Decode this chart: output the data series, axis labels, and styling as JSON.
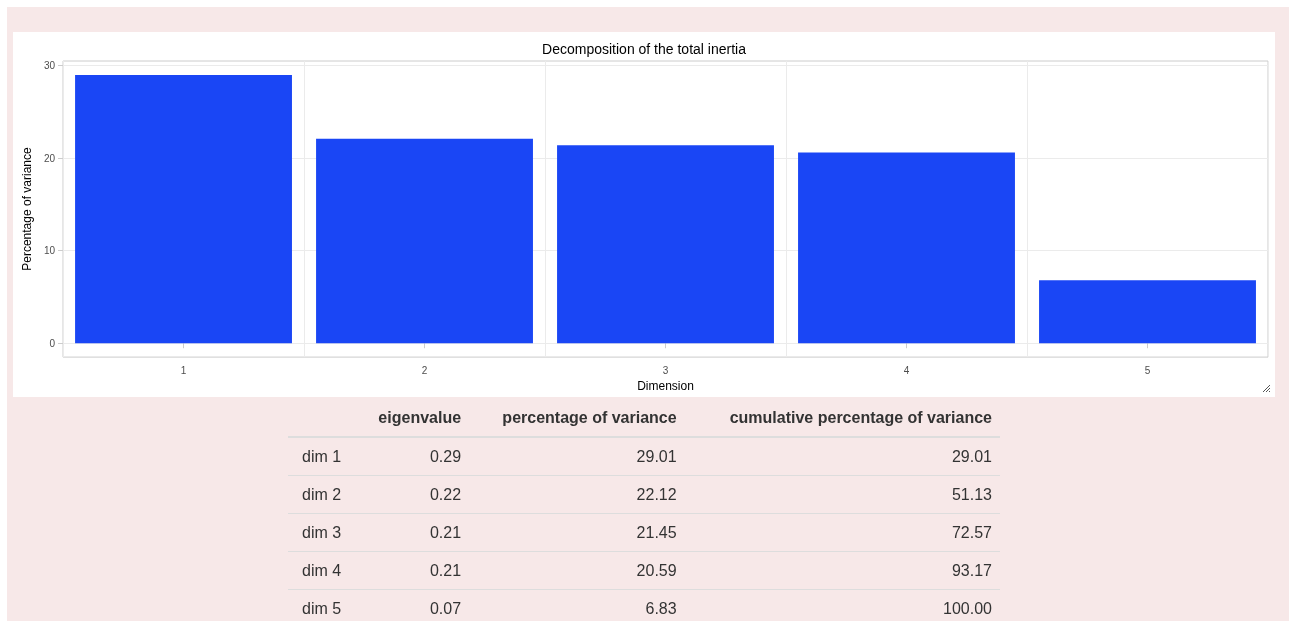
{
  "chart_data": [
    {
      "type": "bar",
      "title": "Decomposition of the total inertia",
      "xlabel": "Dimension",
      "ylabel": "Percentage of variance",
      "categories": [
        "1",
        "2",
        "3",
        "4",
        "5"
      ],
      "values": [
        29.0,
        22.1,
        21.4,
        20.6,
        6.8
      ],
      "color": "#1a46f5",
      "ylim": [
        -1.5,
        30.5
      ],
      "yticks": [
        0,
        10,
        20,
        30
      ],
      "grid": true
    },
    {
      "type": "other",
      "categories": [
        "dim 1",
        "dim 2",
        "dim 3",
        "dim 4",
        "dim 5"
      ],
      "data_labels": true,
      "series": [
        {
          "name": "eigenvalue",
          "values": [
            0.29,
            0.22,
            0.21,
            0.21,
            0.07
          ]
        },
        {
          "name": "percentage of variance",
          "values": [
            29.01,
            22.12,
            21.45,
            20.59,
            6.83
          ]
        },
        {
          "name": "cumulative percentage of variance",
          "values": [
            29.01,
            51.13,
            72.57,
            93.17,
            100
          ],
          "value_labels": [
            "29.01",
            "51.13",
            "72.57",
            "93.17",
            "100.00"
          ]
        }
      ]
    }
  ]
}
